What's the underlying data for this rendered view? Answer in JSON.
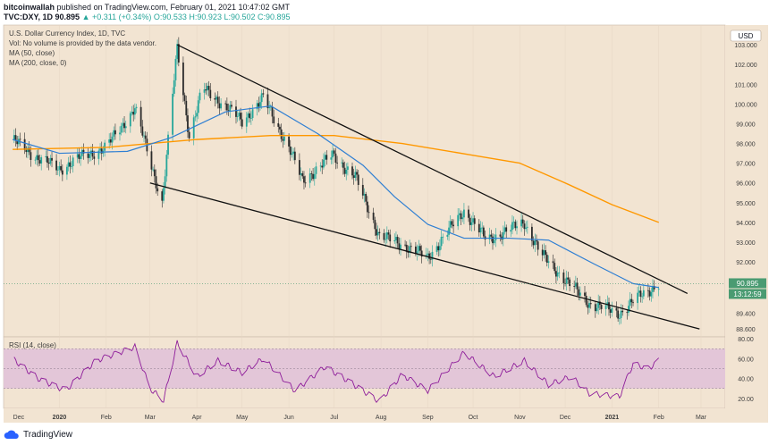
{
  "header": {
    "publisher": "bitcoinwallah",
    "published_text": "published on TradingView.com, February 01, 2021 10:47:02 GMT",
    "symbol": "TVC:DXY, 1D",
    "last": "90.895",
    "change_text": "▲ +0.311 (+0.34%)",
    "ohlc_text": "O:90.533 H:90.923 L:90.502 C:90.895"
  },
  "legend": {
    "title": "U.S. Dollar Currency Index, 1D, TVC",
    "vol": "Vol: No volume is provided by the data vendor.",
    "ma50": "MA (50, close)",
    "ma200": "MA (200, close, 0)"
  },
  "axis": {
    "currency": "USD",
    "price_label": "90.895",
    "countdown_label": "13:12:59",
    "price_ticks": [
      "103.000",
      "102.000",
      "101.000",
      "100.000",
      "99.000",
      "98.000",
      "97.000",
      "96.000",
      "95.000",
      "94.000",
      "93.000",
      "92.000",
      "91.000",
      "90.400",
      "89.400",
      "88.600"
    ],
    "rsi_title": "RSI (14, close)",
    "rsi_ticks": [
      "80.00",
      "60.00",
      "40.00",
      "20.00"
    ],
    "x_ticks": [
      "Dec",
      "2020",
      "Feb",
      "Mar",
      "Apr",
      "May",
      "Jun",
      "Jul",
      "Aug",
      "Sep",
      "Oct",
      "Nov",
      "Dec",
      "2021",
      "Feb",
      "Mar"
    ]
  },
  "colors": {
    "background": "#f2e4d2",
    "up": "#26a69a",
    "down": "#2b2b2b",
    "ma50": "#2f7fd3",
    "ma200": "#ff9800",
    "rsi": "#8e1d9a",
    "rsi_band": "#e3c6d8",
    "price_label": "#4a9b72"
  },
  "footer": {
    "brand": "TradingView"
  },
  "chart_data": [
    {
      "type": "candlestick",
      "title": "U.S. Dollar Currency Index, 1D, TVC",
      "ylim": [
        88.2,
        104.0
      ],
      "y_axis_unit": "USD",
      "last_close": 90.895,
      "price_anchors": [
        {
          "x": "2019-12-01",
          "y": 98.2
        },
        {
          "x": "2019-12-15",
          "y": 97.4
        },
        {
          "x": "2020-01-01",
          "y": 96.7
        },
        {
          "x": "2020-01-15",
          "y": 97.3
        },
        {
          "x": "2020-02-01",
          "y": 97.8
        },
        {
          "x": "2020-02-20",
          "y": 99.8
        },
        {
          "x": "2020-03-09",
          "y": 95.0
        },
        {
          "x": "2020-03-19",
          "y": 102.8
        },
        {
          "x": "2020-03-27",
          "y": 98.4
        },
        {
          "x": "2020-04-05",
          "y": 100.8
        },
        {
          "x": "2020-04-20",
          "y": 99.9
        },
        {
          "x": "2020-05-01",
          "y": 99.1
        },
        {
          "x": "2020-05-15",
          "y": 100.3
        },
        {
          "x": "2020-06-01",
          "y": 97.8
        },
        {
          "x": "2020-06-10",
          "y": 96.1
        },
        {
          "x": "2020-06-30",
          "y": 97.4
        },
        {
          "x": "2020-07-15",
          "y": 96.3
        },
        {
          "x": "2020-07-31",
          "y": 93.3
        },
        {
          "x": "2020-08-15",
          "y": 92.9
        },
        {
          "x": "2020-09-01",
          "y": 92.2
        },
        {
          "x": "2020-09-25",
          "y": 94.6
        },
        {
          "x": "2020-10-10",
          "y": 93.1
        },
        {
          "x": "2020-11-04",
          "y": 94.0
        },
        {
          "x": "2020-11-15",
          "y": 92.4
        },
        {
          "x": "2020-12-01",
          "y": 91.1
        },
        {
          "x": "2020-12-17",
          "y": 89.9
        },
        {
          "x": "2021-01-06",
          "y": 89.4
        },
        {
          "x": "2021-01-20",
          "y": 90.3
        },
        {
          "x": "2021-02-01",
          "y": 90.895
        }
      ],
      "ma50_anchors": [
        {
          "x": "2019-12-01",
          "y": 98.2
        },
        {
          "x": "2020-01-01",
          "y": 97.5
        },
        {
          "x": "2020-02-15",
          "y": 97.6
        },
        {
          "x": "2020-03-15",
          "y": 98.3
        },
        {
          "x": "2020-04-20",
          "y": 99.6
        },
        {
          "x": "2020-05-20",
          "y": 99.9
        },
        {
          "x": "2020-06-20",
          "y": 98.5
        },
        {
          "x": "2020-07-20",
          "y": 96.9
        },
        {
          "x": "2020-08-10",
          "y": 95.3
        },
        {
          "x": "2020-09-01",
          "y": 93.9
        },
        {
          "x": "2020-09-25",
          "y": 93.2
        },
        {
          "x": "2020-10-25",
          "y": 93.2
        },
        {
          "x": "2020-11-20",
          "y": 93.1
        },
        {
          "x": "2020-12-20",
          "y": 91.9
        },
        {
          "x": "2021-01-15",
          "y": 90.9
        },
        {
          "x": "2021-02-01",
          "y": 90.7
        }
      ],
      "ma200_anchors": [
        {
          "x": "2019-12-01",
          "y": 97.7
        },
        {
          "x": "2020-02-01",
          "y": 97.8
        },
        {
          "x": "2020-04-01",
          "y": 98.2
        },
        {
          "x": "2020-05-20",
          "y": 98.4
        },
        {
          "x": "2020-07-01",
          "y": 98.4
        },
        {
          "x": "2020-08-15",
          "y": 98.0
        },
        {
          "x": "2020-10-01",
          "y": 97.4
        },
        {
          "x": "2020-11-01",
          "y": 97.0
        },
        {
          "x": "2020-12-01",
          "y": 96.0
        },
        {
          "x": "2021-01-01",
          "y": 94.9
        },
        {
          "x": "2021-02-01",
          "y": 94.0
        }
      ],
      "trendlines": [
        {
          "from": {
            "x": "2020-03-19",
            "y": 103.0
          },
          "to": {
            "x": "2021-02-20",
            "y": 90.4
          }
        },
        {
          "from": {
            "x": "2020-03-01",
            "y": 96.0
          },
          "to": {
            "x": "2021-02-28",
            "y": 88.6
          }
        }
      ]
    },
    {
      "type": "line",
      "title": "RSI (14, close)",
      "ylim": [
        10,
        82
      ],
      "band": [
        30,
        70
      ],
      "anchors": [
        {
          "x": "2019-12-01",
          "y": 60
        },
        {
          "x": "2019-12-18",
          "y": 40
        },
        {
          "x": "2020-01-05",
          "y": 28
        },
        {
          "x": "2020-01-25",
          "y": 58
        },
        {
          "x": "2020-02-20",
          "y": 72
        },
        {
          "x": "2020-03-01",
          "y": 30
        },
        {
          "x": "2020-03-10",
          "y": 18
        },
        {
          "x": "2020-03-19",
          "y": 76
        },
        {
          "x": "2020-04-01",
          "y": 42
        },
        {
          "x": "2020-04-15",
          "y": 58
        },
        {
          "x": "2020-05-01",
          "y": 46
        },
        {
          "x": "2020-05-15",
          "y": 60
        },
        {
          "x": "2020-06-05",
          "y": 28
        },
        {
          "x": "2020-06-25",
          "y": 52
        },
        {
          "x": "2020-07-10",
          "y": 38
        },
        {
          "x": "2020-07-31",
          "y": 17
        },
        {
          "x": "2020-08-15",
          "y": 44
        },
        {
          "x": "2020-09-01",
          "y": 28
        },
        {
          "x": "2020-09-25",
          "y": 66
        },
        {
          "x": "2020-10-15",
          "y": 42
        },
        {
          "x": "2020-11-04",
          "y": 58
        },
        {
          "x": "2020-11-20",
          "y": 34
        },
        {
          "x": "2020-12-05",
          "y": 42
        },
        {
          "x": "2020-12-17",
          "y": 25
        },
        {
          "x": "2021-01-06",
          "y": 22
        },
        {
          "x": "2021-01-15",
          "y": 55
        },
        {
          "x": "2021-01-25",
          "y": 50
        },
        {
          "x": "2021-02-01",
          "y": 58
        }
      ]
    }
  ]
}
